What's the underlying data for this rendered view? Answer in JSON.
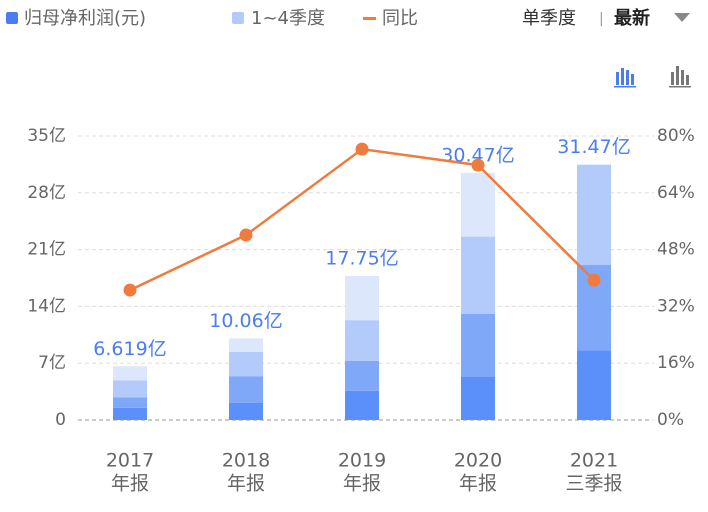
{
  "chart_data": {
    "type": "stacked-bar-line",
    "legend": [
      "归母净利润(元)",
      "1~4季度",
      "同比"
    ],
    "controls": {
      "period": "单季度",
      "separator": "|",
      "sort": "最新"
    },
    "categories": [
      "2017",
      "2018",
      "2019",
      "2020",
      "2021"
    ],
    "category_sublabels": [
      "年报",
      "年报",
      "年报",
      "年报",
      "三季报"
    ],
    "series": [
      {
        "name": "归母净利润(元)",
        "color": "#4a7ef0",
        "values": [
          6.619,
          10.06,
          17.75,
          30.47,
          31.47
        ],
        "value_labels": [
          "6.619亿",
          "10.06亿",
          "17.75亿",
          "30.47亿",
          "31.47亿"
        ]
      },
      {
        "name": "1~4季度",
        "colors": [
          "#5b8ff9",
          "#7fa8f9",
          "#b3cbfa",
          "#dce7fc"
        ],
        "segments": [
          [
            1.5,
            1.3,
            2.1,
            1.719
          ],
          [
            2.1,
            3.3,
            3.0,
            1.66
          ],
          [
            3.6,
            3.7,
            5.0,
            5.45
          ],
          [
            5.3,
            7.8,
            9.5,
            7.87
          ],
          [
            8.6,
            10.5,
            12.37,
            null
          ]
        ]
      },
      {
        "name": "同比",
        "color": "#f07b3f",
        "axis": "y2",
        "values": [
          36.6,
          52.1,
          76.3,
          71.8,
          39.4
        ]
      }
    ],
    "ylim": [
      0,
      35
    ],
    "yticks": [
      {
        "value": 0,
        "label": "0"
      },
      {
        "value": 7,
        "label": "7亿"
      },
      {
        "value": 14,
        "label": "14亿"
      },
      {
        "value": 21,
        "label": "21亿"
      },
      {
        "value": 28,
        "label": "28亿"
      },
      {
        "value": 35,
        "label": "35亿"
      }
    ],
    "y2lim": [
      0,
      80
    ],
    "y2ticks": [
      {
        "value": 0,
        "label": "0%"
      },
      {
        "value": 16,
        "label": "16%"
      },
      {
        "value": 32,
        "label": "32%"
      },
      {
        "value": 48,
        "label": "48%"
      },
      {
        "value": 64,
        "label": "64%"
      },
      {
        "value": 80,
        "label": "80%"
      }
    ],
    "grid": true
  }
}
